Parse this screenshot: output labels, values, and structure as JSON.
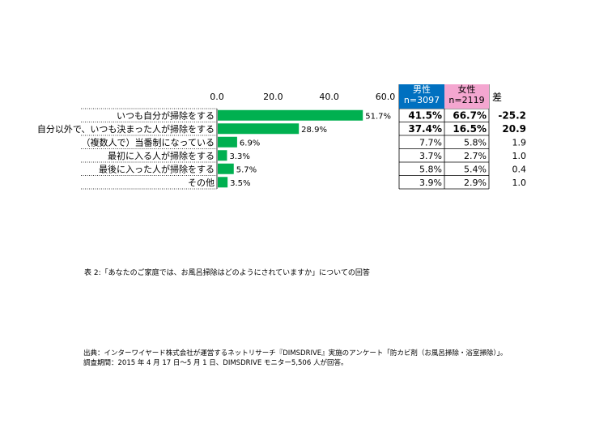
{
  "chart_data": {
    "type": "bar",
    "axis_ticks": [
      "0.0",
      "20.0",
      "40.0",
      "60.0"
    ],
    "xlim": [
      0,
      60
    ],
    "categories": [
      "いつも自分が掃除をする",
      "自分以外で、いつも決まった人が掃除をする",
      "（複数人で）当番制になっている",
      "最初に入る人が掃除をする",
      "最後に入った人が掃除をする",
      "その他"
    ],
    "values": [
      51.7,
      28.9,
      6.9,
      3.3,
      5.7,
      3.5
    ],
    "value_labels": [
      "51.7%",
      "28.9%",
      "6.9%",
      "3.3%",
      "5.7%",
      "3.5%"
    ],
    "bar_color": "#00b050",
    "table": {
      "male_header": "男性",
      "male_n": "n=3097",
      "female_header": "女性",
      "female_n": "n=2119",
      "diff_header": "差",
      "male": [
        "41.5%",
        "37.4%",
        "7.7%",
        "3.7%",
        "5.8%",
        "3.9%"
      ],
      "female": [
        "66.7%",
        "16.5%",
        "5.8%",
        "2.7%",
        "5.4%",
        "2.9%"
      ],
      "diff": [
        "-25.2",
        "20.9",
        "1.9",
        "1.0",
        "0.4",
        "1.0"
      ],
      "bold_rows": [
        0,
        1
      ],
      "male_color": "#0070c0",
      "female_color": "#f4a6d0"
    }
  },
  "caption": "表 2:「あなたのご家庭では、お風呂掃除はどのようにされていますか」についての回答",
  "source_line1": "出典：インターワイヤード株式会社が運営するネットリサーチ『DIMSDRIVE』実施のアンケート「防カビ剤（お風呂掃除・浴室掃除）」。",
  "source_line2": "調査期間：2015 年 4 月 17 日～5 月 1 日、DIMSDRIVE モニター5,506 人が回答。"
}
